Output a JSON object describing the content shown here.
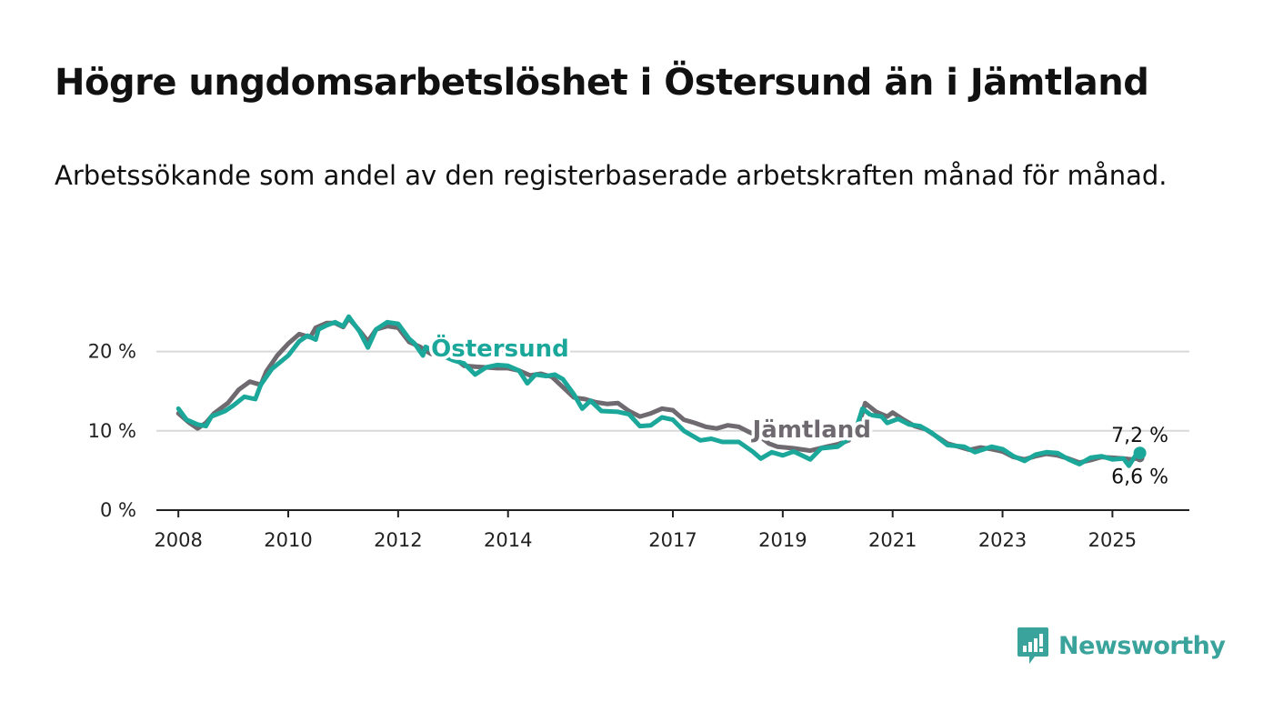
{
  "title": "Högre ungdomsarbetslöshet i Östersund än i Jämtland",
  "subtitle": "Arbetssökande som andel av den registerbaserade arbetskraften månad för månad.",
  "brand": {
    "name": "Newsworthy",
    "icon": "newsworthy-logo-icon",
    "color": "#3aa39c"
  },
  "chart_data": {
    "type": "line",
    "title": "Högre ungdomsarbetslöshet i Östersund än i Jämtland",
    "subtitle": "Arbetssökande som andel av den registerbaserade arbetskraften månad för månad.",
    "xlabel": "",
    "ylabel": "",
    "x_tick_labels": [
      "2008",
      "2010",
      "2012",
      "2014",
      "2017",
      "2019",
      "2021",
      "2023",
      "2025"
    ],
    "y_tick_labels": [
      "0 %",
      "10 %",
      "20 %"
    ],
    "ylim": [
      0,
      25
    ],
    "xlim": [
      2007.6,
      2026.4
    ],
    "grid": "horizontal",
    "legend": "inline labels",
    "series": [
      {
        "name": "Jämtland",
        "color": "#6e6a70",
        "label": "Jämtland",
        "end_label": "6,6 %",
        "points": [
          [
            2008.0,
            12.2
          ],
          [
            2008.2,
            11.0
          ],
          [
            2008.35,
            10.3
          ],
          [
            2008.5,
            11.0
          ],
          [
            2008.65,
            12.2
          ],
          [
            2008.9,
            13.5
          ],
          [
            2009.1,
            15.2
          ],
          [
            2009.3,
            16.2
          ],
          [
            2009.5,
            15.8
          ],
          [
            2009.6,
            17.5
          ],
          [
            2009.8,
            19.5
          ],
          [
            2010.0,
            21.0
          ],
          [
            2010.2,
            22.2
          ],
          [
            2010.4,
            21.8
          ],
          [
            2010.5,
            23.0
          ],
          [
            2010.7,
            23.6
          ],
          [
            2010.85,
            23.6
          ],
          [
            2011.0,
            23.1
          ],
          [
            2011.1,
            24.2
          ],
          [
            2011.3,
            22.6
          ],
          [
            2011.45,
            21.3
          ],
          [
            2011.6,
            22.8
          ],
          [
            2011.8,
            23.2
          ],
          [
            2012.0,
            23.0
          ],
          [
            2012.2,
            21.2
          ],
          [
            2012.4,
            20.6
          ],
          [
            2012.5,
            20.1
          ],
          [
            2012.6,
            19.7
          ],
          [
            2012.8,
            19.5
          ],
          [
            2013.0,
            19.3
          ],
          [
            2013.2,
            18.2
          ],
          [
            2013.4,
            18.1
          ],
          [
            2013.6,
            18.0
          ],
          [
            2013.8,
            17.9
          ],
          [
            2014.0,
            17.9
          ],
          [
            2014.2,
            17.6
          ],
          [
            2014.4,
            17.0
          ],
          [
            2014.6,
            17.2
          ],
          [
            2014.8,
            16.8
          ],
          [
            2015.0,
            15.5
          ],
          [
            2015.2,
            14.2
          ],
          [
            2015.4,
            14.0
          ],
          [
            2015.6,
            13.6
          ],
          [
            2015.8,
            13.4
          ],
          [
            2016.0,
            13.5
          ],
          [
            2016.2,
            12.5
          ],
          [
            2016.4,
            11.8
          ],
          [
            2016.6,
            12.2
          ],
          [
            2016.8,
            12.8
          ],
          [
            2017.0,
            12.6
          ],
          [
            2017.2,
            11.4
          ],
          [
            2017.4,
            11.0
          ],
          [
            2017.6,
            10.5
          ],
          [
            2017.8,
            10.3
          ],
          [
            2018.0,
            10.7
          ],
          [
            2018.2,
            10.5
          ],
          [
            2018.4,
            9.8
          ],
          [
            2018.6,
            9.2
          ],
          [
            2018.75,
            8.4
          ],
          [
            2018.9,
            8.0
          ],
          [
            2019.2,
            7.8
          ],
          [
            2019.5,
            7.5
          ],
          [
            2019.8,
            8.0
          ],
          [
            2020.0,
            8.3
          ],
          [
            2020.2,
            8.8
          ],
          [
            2020.4,
            11.0
          ],
          [
            2020.5,
            13.5
          ],
          [
            2020.7,
            12.4
          ],
          [
            2020.9,
            11.8
          ],
          [
            2021.0,
            12.3
          ],
          [
            2021.2,
            11.4
          ],
          [
            2021.4,
            10.6
          ],
          [
            2021.6,
            10.2
          ],
          [
            2021.8,
            9.3
          ],
          [
            2022.0,
            8.4
          ],
          [
            2022.2,
            8.0
          ],
          [
            2022.4,
            7.6
          ],
          [
            2022.6,
            7.9
          ],
          [
            2022.8,
            7.7
          ],
          [
            2023.0,
            7.4
          ],
          [
            2023.2,
            6.7
          ],
          [
            2023.4,
            6.4
          ],
          [
            2023.6,
            6.8
          ],
          [
            2023.8,
            7.1
          ],
          [
            2024.0,
            6.9
          ],
          [
            2024.2,
            6.5
          ],
          [
            2024.4,
            6.0
          ],
          [
            2024.6,
            6.3
          ],
          [
            2024.8,
            6.7
          ],
          [
            2025.0,
            6.6
          ],
          [
            2025.2,
            6.5
          ],
          [
            2025.35,
            6.4
          ],
          [
            2025.5,
            6.6
          ]
        ]
      },
      {
        "name": "Östersund",
        "color": "#1ba89a",
        "label": "Östersund",
        "end_label": "7,2 %",
        "points": [
          [
            2008.0,
            12.8
          ],
          [
            2008.15,
            11.4
          ],
          [
            2008.35,
            10.8
          ],
          [
            2008.5,
            10.6
          ],
          [
            2008.6,
            11.8
          ],
          [
            2008.85,
            12.5
          ],
          [
            2009.0,
            13.2
          ],
          [
            2009.2,
            14.3
          ],
          [
            2009.4,
            14.0
          ],
          [
            2009.5,
            15.8
          ],
          [
            2009.7,
            17.8
          ],
          [
            2010.0,
            19.5
          ],
          [
            2010.2,
            21.3
          ],
          [
            2010.35,
            22.0
          ],
          [
            2010.5,
            21.5
          ],
          [
            2010.55,
            22.8
          ],
          [
            2010.7,
            23.3
          ],
          [
            2010.85,
            23.7
          ],
          [
            2011.0,
            23.2
          ],
          [
            2011.1,
            24.4
          ],
          [
            2011.3,
            22.5
          ],
          [
            2011.45,
            20.5
          ],
          [
            2011.6,
            22.8
          ],
          [
            2011.8,
            23.7
          ],
          [
            2012.0,
            23.5
          ],
          [
            2012.2,
            21.6
          ],
          [
            2012.3,
            21.0
          ],
          [
            2012.45,
            19.5
          ],
          [
            2012.5,
            20.6
          ],
          [
            2012.7,
            19.8
          ],
          [
            2013.0,
            18.9
          ],
          [
            2013.2,
            18.5
          ],
          [
            2013.4,
            17.1
          ],
          [
            2013.6,
            18.0
          ],
          [
            2013.8,
            18.3
          ],
          [
            2014.0,
            18.2
          ],
          [
            2014.2,
            17.6
          ],
          [
            2014.35,
            16.0
          ],
          [
            2014.5,
            17.1
          ],
          [
            2014.7,
            16.9
          ],
          [
            2014.85,
            17.1
          ],
          [
            2015.0,
            16.5
          ],
          [
            2015.2,
            14.6
          ],
          [
            2015.35,
            12.8
          ],
          [
            2015.5,
            13.8
          ],
          [
            2015.7,
            12.5
          ],
          [
            2016.0,
            12.4
          ],
          [
            2016.2,
            12.1
          ],
          [
            2016.4,
            10.6
          ],
          [
            2016.6,
            10.7
          ],
          [
            2016.8,
            11.7
          ],
          [
            2017.0,
            11.4
          ],
          [
            2017.2,
            10.0
          ],
          [
            2017.5,
            8.8
          ],
          [
            2017.7,
            9.0
          ],
          [
            2017.9,
            8.6
          ],
          [
            2018.2,
            8.6
          ],
          [
            2018.45,
            7.4
          ],
          [
            2018.6,
            6.5
          ],
          [
            2018.8,
            7.3
          ],
          [
            2019.0,
            6.9
          ],
          [
            2019.2,
            7.4
          ],
          [
            2019.5,
            6.4
          ],
          [
            2019.7,
            7.8
          ],
          [
            2020.0,
            8.0
          ],
          [
            2020.3,
            9.5
          ],
          [
            2020.45,
            12.8
          ],
          [
            2020.6,
            12.0
          ],
          [
            2020.8,
            11.8
          ],
          [
            2020.9,
            11.0
          ],
          [
            2021.1,
            11.5
          ],
          [
            2021.3,
            10.8
          ],
          [
            2021.5,
            10.6
          ],
          [
            2021.7,
            9.8
          ],
          [
            2022.0,
            8.2
          ],
          [
            2022.3,
            8.0
          ],
          [
            2022.5,
            7.3
          ],
          [
            2022.8,
            8.0
          ],
          [
            2023.0,
            7.7
          ],
          [
            2023.2,
            6.8
          ],
          [
            2023.4,
            6.2
          ],
          [
            2023.6,
            7.0
          ],
          [
            2023.8,
            7.3
          ],
          [
            2024.0,
            7.2
          ],
          [
            2024.2,
            6.4
          ],
          [
            2024.4,
            5.8
          ],
          [
            2024.6,
            6.6
          ],
          [
            2024.8,
            6.8
          ],
          [
            2025.0,
            6.4
          ],
          [
            2025.2,
            6.5
          ],
          [
            2025.3,
            5.6
          ],
          [
            2025.45,
            7.2
          ],
          [
            2025.5,
            7.2
          ]
        ]
      }
    ]
  }
}
